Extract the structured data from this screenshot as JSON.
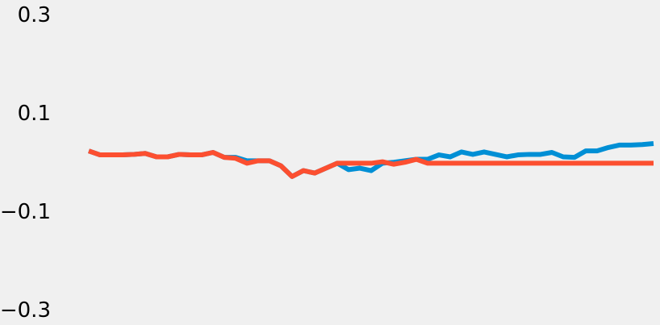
{
  "chart_data": {
    "type": "line",
    "categories": [
      null,
      null,
      null,
      null,
      null,
      null,
      null,
      null,
      null,
      null,
      null,
      null,
      null,
      null,
      null,
      null,
      null,
      null,
      null,
      null,
      null,
      null,
      null,
      null,
      null,
      null,
      null,
      null,
      null,
      null,
      null,
      null,
      null,
      null,
      null,
      null,
      null,
      null,
      null,
      null,
      null,
      null,
      null,
      null,
      null,
      null,
      null,
      null,
      null,
      null,
      null
    ],
    "series": [
      {
        "color": "#008fd5",
        "values": [
          0.025,
          0.017,
          0.017,
          0.017,
          0.018,
          0.02,
          0.013,
          0.013,
          0.018,
          0.017,
          0.017,
          0.022,
          0.012,
          0.012,
          0.005,
          0.005,
          0.005,
          -0.005,
          -0.027,
          -0.015,
          -0.02,
          -0.01,
          0,
          -0.013,
          -0.01,
          -0.015,
          0,
          0.002,
          0.005,
          0.008,
          0.008,
          0.017,
          0.013,
          0.023,
          0.018,
          0.023,
          0.018,
          0.013,
          0.017,
          0.018,
          0.018,
          0.022,
          0.013,
          0.012,
          0.025,
          0.025,
          0.032,
          0.037,
          0.037,
          0.038,
          0.04
        ]
      },
      {
        "color": "#fc4f30",
        "values": [
          0.025,
          0.017,
          0.017,
          0.017,
          0.018,
          0.02,
          0.013,
          0.013,
          0.018,
          0.017,
          0.017,
          0.022,
          0.012,
          0.01,
          0,
          0.005,
          0.005,
          -0.005,
          -0.027,
          -0.015,
          -0.02,
          -0.01,
          0,
          0,
          0,
          0,
          0.003,
          -0.002,
          0.002,
          0.008,
          0,
          0,
          0,
          0,
          0,
          0,
          0,
          0,
          0,
          0,
          0,
          0,
          0,
          0,
          0,
          0,
          0,
          0,
          0,
          0,
          0
        ]
      }
    ],
    "ylim": [
      -0.329,
      0.332
    ],
    "yticks": [
      {
        "value": 0.3,
        "label": "0.3"
      },
      {
        "value": 0.1,
        "label": "0.1"
      },
      {
        "value": -0.1,
        "label": "−0.1"
      },
      {
        "value": -0.3,
        "label": "−0.3"
      }
    ],
    "grid": false
  }
}
